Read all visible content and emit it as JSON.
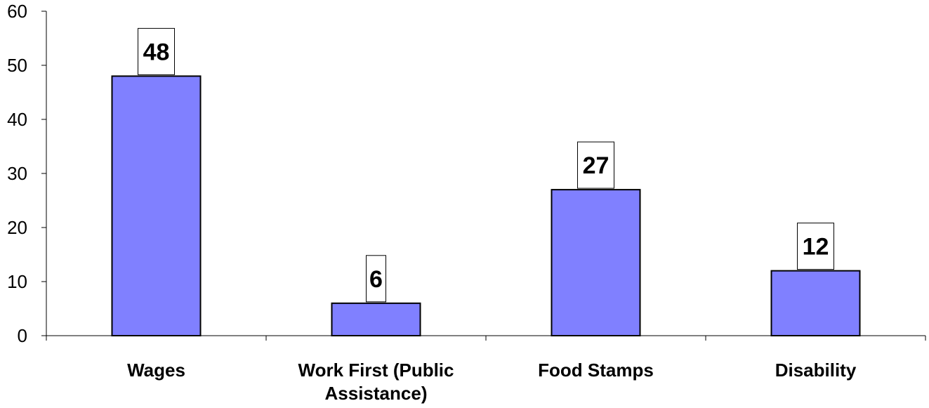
{
  "chart_data": {
    "type": "bar",
    "title": "",
    "xlabel": "",
    "ylabel": "",
    "categories": [
      [
        "Wages"
      ],
      [
        "Work First (Public",
        "Assistance)"
      ],
      [
        "Food Stamps"
      ],
      [
        "Disability"
      ]
    ],
    "values": [
      48,
      6,
      27,
      12
    ],
    "ylim": [
      0,
      60
    ],
    "yticks": [
      0,
      10,
      20,
      30,
      40,
      50,
      60
    ],
    "grid": false,
    "legend": "none",
    "colors": {
      "bar_fill": "#8080ff",
      "bar_stroke": "#000000",
      "label_box_stroke": "#000000"
    }
  }
}
